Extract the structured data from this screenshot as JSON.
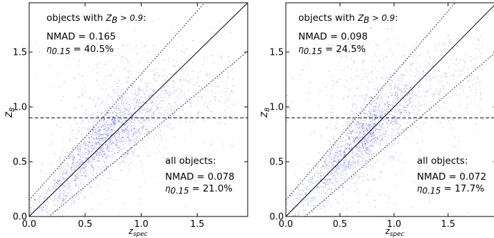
{
  "chart_data": [
    {
      "type": "scatter",
      "title": "",
      "xlabel": "z_spec",
      "ylabel": "Z_B",
      "xlim": [
        0.0,
        1.95
      ],
      "ylim": [
        0.0,
        1.95
      ],
      "x_ticks": [
        "0.0",
        "0.5",
        "1.0",
        "1.5"
      ],
      "y_ticks": [
        "0.0",
        "0.5",
        "1.0",
        "1.5"
      ],
      "grid": false,
      "point_color": "#0000ff",
      "cutoff_zb": 0.9,
      "one_to_one_line": true,
      "outlier_bounds": 0.15,
      "annotations": {
        "upper_header": "objects with Z_B > 0.9:",
        "upper_nmad": "NMAD = 0.165",
        "upper_eta": "η_0.15 = 40.5%",
        "lower_header": "all objects:",
        "lower_nmad": "NMAD = 0.078",
        "lower_eta": "η_0.15 = 21.0%"
      },
      "density_ridge": [
        {
          "x": 0.05,
          "y": 0.05
        },
        {
          "x": 0.2,
          "y": 0.22
        },
        {
          "x": 0.4,
          "y": 0.45
        },
        {
          "x": 0.6,
          "y": 0.65
        },
        {
          "x": 0.75,
          "y": 0.8
        },
        {
          "x": 0.9,
          "y": 0.85
        },
        {
          "x": 1.1,
          "y": 1.0
        },
        {
          "x": 1.3,
          "y": 1.15
        }
      ]
    },
    {
      "type": "scatter",
      "title": "",
      "xlabel": "z_spec",
      "ylabel": "Z_B",
      "xlim": [
        0.0,
        1.95
      ],
      "ylim": [
        0.0,
        1.95
      ],
      "x_ticks": [
        "0.0",
        "0.5",
        "1.0",
        "1.5"
      ],
      "y_ticks": [
        "0.0",
        "0.5",
        "1.0",
        "1.5"
      ],
      "grid": false,
      "point_color": "#0000ff",
      "cutoff_zb": 0.9,
      "one_to_one_line": true,
      "outlier_bounds": 0.15,
      "annotations": {
        "upper_header": "objects with Z_B > 0.9:",
        "upper_nmad": "NMAD = 0.098",
        "upper_eta": "η_0.15 = 24.5%",
        "lower_header": "all objects:",
        "lower_nmad": "NMAD = 0.072",
        "lower_eta": "η_0.15 = 17.7%"
      },
      "density_ridge": [
        {
          "x": 0.05,
          "y": 0.05
        },
        {
          "x": 0.2,
          "y": 0.2
        },
        {
          "x": 0.4,
          "y": 0.42
        },
        {
          "x": 0.6,
          "y": 0.62
        },
        {
          "x": 0.8,
          "y": 0.8
        },
        {
          "x": 1.0,
          "y": 0.98
        },
        {
          "x": 1.2,
          "y": 1.15
        },
        {
          "x": 1.4,
          "y": 1.3
        }
      ]
    }
  ]
}
